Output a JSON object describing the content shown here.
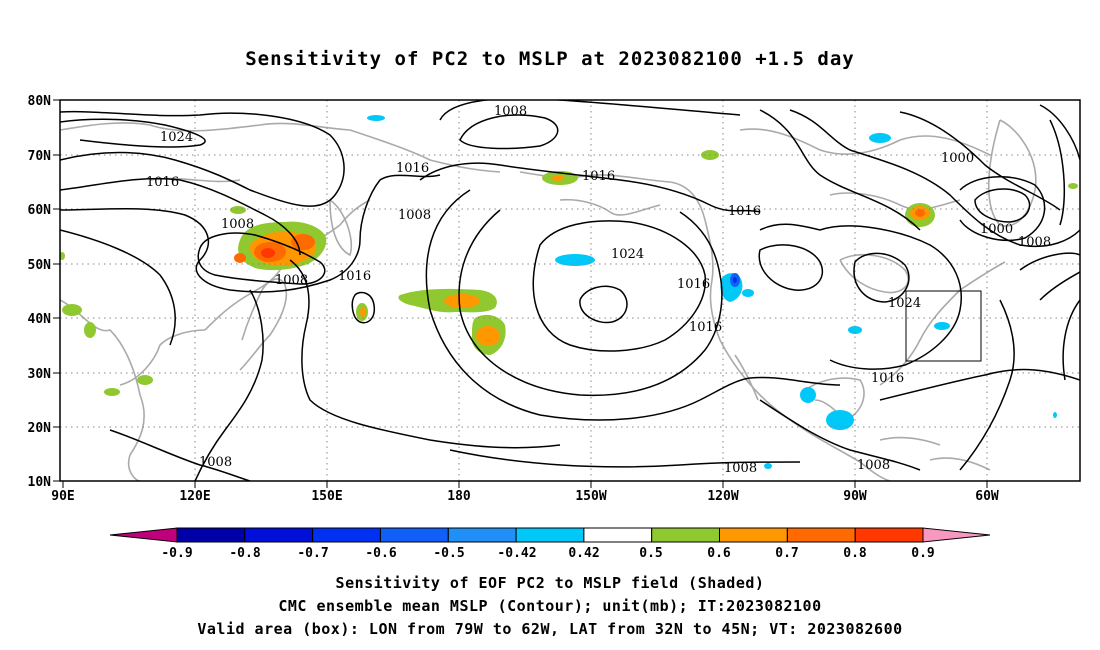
{
  "title": "Sensitivity of PC2 to MSLP at 2023082100 +1.5 day",
  "map": {
    "lat_ticks": [
      "80N",
      "70N",
      "60N",
      "50N",
      "40N",
      "30N",
      "20N",
      "10N"
    ],
    "lon_ticks": [
      "90E",
      "120E",
      "150E",
      "180",
      "150W",
      "120W",
      "90W",
      "60W"
    ],
    "contour_labels": [
      {
        "text": "1008",
        "id": "c1"
      },
      {
        "text": "1024",
        "id": "c2"
      },
      {
        "text": "1016",
        "id": "c3"
      },
      {
        "text": "1016",
        "id": "c4"
      },
      {
        "text": "1016",
        "id": "c5"
      },
      {
        "text": "1008",
        "id": "c6"
      },
      {
        "text": "1008",
        "id": "c7"
      },
      {
        "text": "1008",
        "id": "c8"
      },
      {
        "text": "1016",
        "id": "c9"
      },
      {
        "text": "1024",
        "id": "c10"
      },
      {
        "text": "1016",
        "id": "c11"
      },
      {
        "text": "1016",
        "id": "c12"
      },
      {
        "text": "1016",
        "id": "c13"
      },
      {
        "text": "1000",
        "id": "c14"
      },
      {
        "text": "1000",
        "id": "c15"
      },
      {
        "text": "1008",
        "id": "c16"
      },
      {
        "text": "1024",
        "id": "c17"
      },
      {
        "text": "1016",
        "id": "c18"
      },
      {
        "text": "1008",
        "id": "c19"
      },
      {
        "text": "1008",
        "id": "c20"
      },
      {
        "text": "1008",
        "id": "c21"
      }
    ],
    "box": {
      "lon": [
        -79,
        -62
      ],
      "lat": [
        32,
        45
      ]
    }
  },
  "colorbar": {
    "labels": [
      "-0.9",
      "-0.8",
      "-0.7",
      "-0.6",
      "-0.5",
      "-0.42",
      "0.42",
      "0.5",
      "0.6",
      "0.7",
      "0.8",
      "0.9"
    ],
    "colors": [
      "#c0007a",
      "#0000a8",
      "#0010d8",
      "#0030f0",
      "#1060f8",
      "#2090f8",
      "#00c8f8",
      "#ffffff",
      "#90c830",
      "#ff9800",
      "#ff6a00",
      "#ff3800",
      "#ff0000",
      "#f898c0"
    ]
  },
  "caption": {
    "line1": "Sensitivity of EOF PC2 to MSLP field (Shaded)",
    "line2": "CMC ensemble mean MSLP (Contour); unit(mb); IT:2023082100",
    "line3": "Valid area (box): LON from 79W to 62W, LAT from 32N to 45N; VT: 2023082600"
  }
}
